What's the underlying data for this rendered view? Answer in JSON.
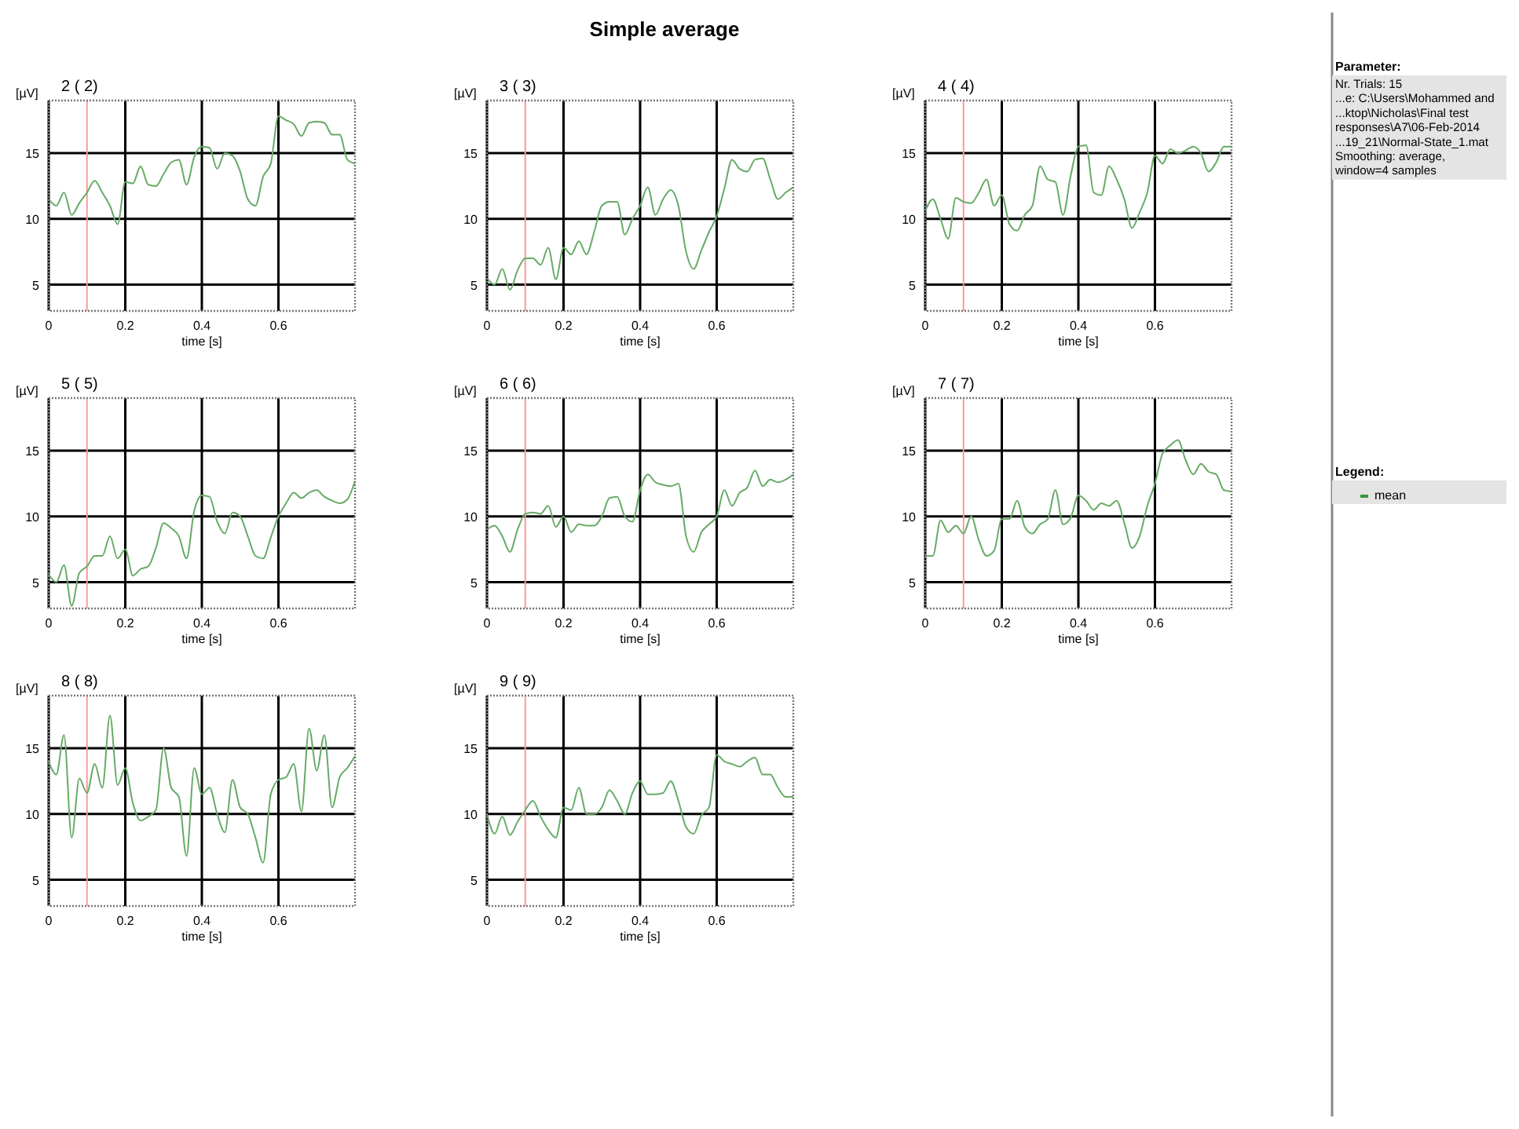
{
  "chart_data": [
    {
      "type": "line",
      "title": "2 ( 2)",
      "ylabel": "[µV]",
      "xlabel": "time [s]",
      "xlim": [
        0,
        0.8
      ],
      "ylim": [
        3,
        19
      ],
      "xticks": [
        0,
        0.2,
        0.4,
        0.6
      ],
      "yticks": [
        5,
        10,
        15
      ],
      "grid": true,
      "ref_lines": [
        {
          "axis": "x",
          "value": 0.1,
          "color": "#ff9999"
        }
      ],
      "x": [
        0,
        0.02,
        0.04,
        0.06,
        0.08,
        0.1,
        0.12,
        0.14,
        0.16,
        0.18,
        0.2,
        0.22,
        0.24,
        0.26,
        0.28,
        0.3,
        0.32,
        0.34,
        0.36,
        0.38,
        0.4,
        0.42,
        0.44,
        0.46,
        0.48,
        0.5,
        0.52,
        0.54,
        0.56,
        0.58,
        0.6,
        0.62,
        0.64,
        0.66,
        0.68,
        0.7,
        0.72,
        0.74,
        0.76,
        0.78,
        0.8
      ],
      "series": [
        {
          "color": "#66aa66",
          "values": [
            11.5,
            11,
            12,
            10.3,
            11.2,
            12,
            12.9,
            12,
            11,
            9.6,
            12.8,
            12.7,
            14,
            12.6,
            12.5,
            13.4,
            14.3,
            14.5,
            12.6,
            14.7,
            15.5,
            15.4,
            13.8,
            15,
            14.8,
            13.6,
            11.5,
            11,
            13.2,
            14.2,
            17.8,
            17.5,
            17.2,
            16.3,
            17.3,
            17.4,
            17.3,
            16.4,
            16.4,
            14.5,
            14.2
          ]
        }
      ]
    },
    {
      "type": "line",
      "title": "3 ( 3)",
      "ylabel": "[µV]",
      "xlabel": "time [s]",
      "xlim": [
        0,
        0.8
      ],
      "ylim": [
        3,
        19
      ],
      "xticks": [
        0,
        0.2,
        0.4,
        0.6
      ],
      "yticks": [
        5,
        10,
        15
      ],
      "grid": true,
      "ref_lines": [
        {
          "axis": "x",
          "value": 0.1,
          "color": "#ff9999"
        }
      ],
      "x": [
        0,
        0.02,
        0.04,
        0.06,
        0.08,
        0.1,
        0.12,
        0.14,
        0.16,
        0.18,
        0.2,
        0.22,
        0.24,
        0.26,
        0.28,
        0.3,
        0.32,
        0.34,
        0.36,
        0.38,
        0.4,
        0.42,
        0.44,
        0.46,
        0.48,
        0.5,
        0.52,
        0.54,
        0.56,
        0.58,
        0.6,
        0.62,
        0.64,
        0.66,
        0.68,
        0.7,
        0.72,
        0.74,
        0.76,
        0.78,
        0.8
      ],
      "series": [
        {
          "color": "#66aa66",
          "values": [
            5.5,
            5,
            6.2,
            4.6,
            6.1,
            7,
            7,
            6.5,
            7.8,
            5.4,
            7.8,
            7.3,
            8.3,
            7.3,
            9,
            11,
            11.3,
            11.3,
            8.8,
            10,
            11,
            12.4,
            10.3,
            11.5,
            12.2,
            11,
            7.5,
            6.2,
            7.6,
            9,
            10.2,
            12.3,
            14.5,
            13.8,
            13.6,
            14.5,
            14.6,
            13,
            11.5,
            12,
            12.4
          ]
        }
      ]
    },
    {
      "type": "line",
      "title": "4 ( 4)",
      "ylabel": "[µV]",
      "xlabel": "time [s]",
      "xlim": [
        0,
        0.8
      ],
      "ylim": [
        3,
        19
      ],
      "xticks": [
        0,
        0.2,
        0.4,
        0.6
      ],
      "yticks": [
        5,
        10,
        15
      ],
      "grid": true,
      "ref_lines": [
        {
          "axis": "x",
          "value": 0.1,
          "color": "#ff9999"
        }
      ],
      "x": [
        0,
        0.02,
        0.04,
        0.06,
        0.08,
        0.1,
        0.12,
        0.14,
        0.16,
        0.18,
        0.2,
        0.22,
        0.24,
        0.26,
        0.28,
        0.3,
        0.32,
        0.34,
        0.36,
        0.38,
        0.4,
        0.42,
        0.44,
        0.46,
        0.48,
        0.5,
        0.52,
        0.54,
        0.56,
        0.58,
        0.6,
        0.62,
        0.64,
        0.66,
        0.68,
        0.7,
        0.72,
        0.74,
        0.76,
        0.78,
        0.8
      ],
      "series": [
        {
          "color": "#66aa66",
          "values": [
            10.6,
            11.5,
            10,
            8.5,
            11.6,
            11.3,
            11.2,
            12,
            13,
            11,
            11.8,
            9.6,
            9.1,
            10.3,
            11,
            14,
            13,
            12.8,
            10.3,
            13.3,
            15.5,
            15.6,
            12,
            11.8,
            14,
            13,
            11.5,
            9.3,
            10.5,
            12,
            14.8,
            14.2,
            15.3,
            15,
            15.2,
            15.5,
            15,
            13.6,
            14.3,
            15.5,
            15.5
          ]
        }
      ]
    },
    {
      "type": "line",
      "title": "5 ( 5)",
      "ylabel": "[µV]",
      "xlabel": "time [s]",
      "xlim": [
        0,
        0.8
      ],
      "ylim": [
        3,
        19
      ],
      "xticks": [
        0,
        0.2,
        0.4,
        0.6
      ],
      "yticks": [
        5,
        10,
        15
      ],
      "grid": true,
      "ref_lines": [
        {
          "axis": "x",
          "value": 0.1,
          "color": "#ff9999"
        }
      ],
      "x": [
        0,
        0.02,
        0.04,
        0.06,
        0.08,
        0.1,
        0.12,
        0.14,
        0.16,
        0.18,
        0.2,
        0.22,
        0.24,
        0.26,
        0.28,
        0.3,
        0.32,
        0.34,
        0.36,
        0.38,
        0.4,
        0.42,
        0.44,
        0.46,
        0.48,
        0.5,
        0.52,
        0.54,
        0.56,
        0.58,
        0.6,
        0.62,
        0.64,
        0.66,
        0.68,
        0.7,
        0.72,
        0.74,
        0.76,
        0.78,
        0.8
      ],
      "series": [
        {
          "color": "#66aa66",
          "values": [
            5.6,
            5,
            6.3,
            3.2,
            5.7,
            6.2,
            7,
            7,
            8.5,
            6.8,
            7.5,
            5.5,
            6,
            6.2,
            7.6,
            9.5,
            9.1,
            8.5,
            6.8,
            10.4,
            11.6,
            11.5,
            9.6,
            8.7,
            10.3,
            10,
            8.5,
            7,
            6.8,
            8.4,
            10,
            11,
            11.8,
            11.4,
            11.8,
            12,
            11.5,
            11.2,
            11,
            11.3,
            12.7
          ]
        }
      ]
    },
    {
      "type": "line",
      "title": "6 ( 6)",
      "ylabel": "[µV]",
      "xlabel": "time [s]",
      "xlim": [
        0,
        0.8
      ],
      "ylim": [
        3,
        19
      ],
      "xticks": [
        0,
        0.2,
        0.4,
        0.6
      ],
      "yticks": [
        5,
        10,
        15
      ],
      "grid": true,
      "ref_lines": [
        {
          "axis": "x",
          "value": 0.1,
          "color": "#ff9999"
        }
      ],
      "x": [
        0,
        0.02,
        0.04,
        0.06,
        0.08,
        0.1,
        0.12,
        0.14,
        0.16,
        0.18,
        0.2,
        0.22,
        0.24,
        0.26,
        0.28,
        0.3,
        0.32,
        0.34,
        0.36,
        0.38,
        0.4,
        0.42,
        0.44,
        0.46,
        0.48,
        0.5,
        0.52,
        0.54,
        0.56,
        0.58,
        0.6,
        0.62,
        0.64,
        0.66,
        0.68,
        0.7,
        0.72,
        0.74,
        0.76,
        0.78,
        0.8
      ],
      "series": [
        {
          "color": "#66aa66",
          "values": [
            9,
            9.3,
            8.5,
            7.3,
            9,
            10.2,
            10.3,
            10.2,
            10.8,
            9.2,
            10,
            8.8,
            9.4,
            9.3,
            9.3,
            10,
            11.4,
            11.5,
            10,
            9.6,
            12,
            13.2,
            12.6,
            12.4,
            12.3,
            12.5,
            8.5,
            7.3,
            8.8,
            9.4,
            10,
            12,
            10.8,
            11.8,
            12.2,
            13.5,
            12.3,
            12.8,
            12.6,
            12.8,
            13.2
          ]
        }
      ]
    },
    {
      "type": "line",
      "title": "7 ( 7)",
      "ylabel": "[µV]",
      "xlabel": "time [s]",
      "xlim": [
        0,
        0.8
      ],
      "ylim": [
        3,
        19
      ],
      "xticks": [
        0,
        0.2,
        0.4,
        0.6
      ],
      "yticks": [
        5,
        10,
        15
      ],
      "grid": true,
      "ref_lines": [
        {
          "axis": "x",
          "value": 0.1,
          "color": "#ff9999"
        }
      ],
      "x": [
        0,
        0.02,
        0.04,
        0.06,
        0.08,
        0.1,
        0.12,
        0.14,
        0.16,
        0.18,
        0.2,
        0.22,
        0.24,
        0.26,
        0.28,
        0.3,
        0.32,
        0.34,
        0.36,
        0.38,
        0.4,
        0.42,
        0.44,
        0.46,
        0.48,
        0.5,
        0.52,
        0.54,
        0.56,
        0.58,
        0.6,
        0.62,
        0.64,
        0.66,
        0.68,
        0.7,
        0.72,
        0.74,
        0.76,
        0.78,
        0.8
      ],
      "series": [
        {
          "color": "#66aa66",
          "values": [
            7,
            7,
            9.7,
            8.8,
            9.3,
            8.7,
            10,
            8.2,
            7,
            7.4,
            9.8,
            9.8,
            11.2,
            9.2,
            8.7,
            9.4,
            9.8,
            12,
            9.4,
            9.9,
            11.6,
            11.2,
            10.5,
            11,
            10.8,
            11.2,
            9.5,
            7.6,
            8.5,
            10.8,
            12.5,
            14.8,
            15.4,
            15.8,
            14.3,
            13.2,
            14,
            13.4,
            13.2,
            12,
            11.9
          ]
        }
      ]
    },
    {
      "type": "line",
      "title": "8 ( 8)",
      "ylabel": "[µV]",
      "xlabel": "time [s]",
      "xlim": [
        0,
        0.8
      ],
      "ylim": [
        3,
        19
      ],
      "xticks": [
        0,
        0.2,
        0.4,
        0.6
      ],
      "yticks": [
        5,
        10,
        15
      ],
      "grid": true,
      "ref_lines": [
        {
          "axis": "x",
          "value": 0.1,
          "color": "#ff9999"
        }
      ],
      "x": [
        0,
        0.02,
        0.04,
        0.06,
        0.08,
        0.1,
        0.12,
        0.14,
        0.16,
        0.18,
        0.2,
        0.22,
        0.24,
        0.26,
        0.28,
        0.3,
        0.32,
        0.34,
        0.36,
        0.38,
        0.4,
        0.42,
        0.44,
        0.46,
        0.48,
        0.5,
        0.52,
        0.54,
        0.56,
        0.58,
        0.6,
        0.62,
        0.64,
        0.66,
        0.68,
        0.7,
        0.72,
        0.74,
        0.76,
        0.78,
        0.8
      ],
      "series": [
        {
          "color": "#66aa66",
          "values": [
            14,
            13,
            16,
            8.2,
            12.7,
            11.6,
            13.8,
            12,
            17.5,
            12.2,
            13.5,
            10.8,
            9.5,
            9.8,
            10.3,
            15,
            12,
            11.3,
            6.8,
            13.5,
            11.5,
            12,
            10,
            8.6,
            12.6,
            10.5,
            10,
            8.2,
            6.3,
            11.5,
            12.6,
            12.8,
            13.8,
            10.2,
            16.5,
            13.3,
            16,
            10.5,
            12.8,
            13.5,
            14.4
          ]
        }
      ]
    },
    {
      "type": "line",
      "title": "9 ( 9)",
      "ylabel": "[µV]",
      "xlabel": "time [s]",
      "xlim": [
        0,
        0.8
      ],
      "ylim": [
        3,
        19
      ],
      "xticks": [
        0,
        0.2,
        0.4,
        0.6
      ],
      "yticks": [
        5,
        10,
        15
      ],
      "grid": true,
      "ref_lines": [
        {
          "axis": "x",
          "value": 0.1,
          "color": "#ff9999"
        }
      ],
      "x": [
        0,
        0.02,
        0.04,
        0.06,
        0.08,
        0.1,
        0.12,
        0.14,
        0.16,
        0.18,
        0.2,
        0.22,
        0.24,
        0.26,
        0.28,
        0.3,
        0.32,
        0.34,
        0.36,
        0.38,
        0.4,
        0.42,
        0.44,
        0.46,
        0.48,
        0.5,
        0.52,
        0.54,
        0.56,
        0.58,
        0.6,
        0.62,
        0.64,
        0.66,
        0.68,
        0.7,
        0.72,
        0.74,
        0.76,
        0.78,
        0.8
      ],
      "series": [
        {
          "color": "#66aa66",
          "values": [
            10,
            8.5,
            9.8,
            8.4,
            9.4,
            10.3,
            11,
            9.8,
            8.8,
            8.2,
            10.5,
            10.3,
            12,
            10,
            10,
            10.5,
            11.8,
            11,
            10,
            11.6,
            12.5,
            11.5,
            11.5,
            11.6,
            12.5,
            11,
            9,
            8.5,
            9.9,
            10.5,
            14.5,
            14,
            13.8,
            13.6,
            14,
            14.3,
            13,
            13,
            12,
            11.3,
            11.3
          ]
        }
      ]
    },
    {
      "type": "other",
      "title": "Parameter:",
      "annotations": [
        "Nr. Trials: 15",
        "...e: C:\\Users\\Mohammed and",
        "...ktop\\Nicholas\\Final test",
        "responses\\A7\\06-Feb-2014",
        "...19_21\\Normal-State_1.mat",
        "Smoothing: average,",
        "window=4 samples"
      ],
      "legend_title": "Legend:",
      "categories": [
        "mean"
      ],
      "colors": [
        "#339933"
      ]
    },
    {
      "type": "other",
      "title": "Simple average"
    }
  ]
}
